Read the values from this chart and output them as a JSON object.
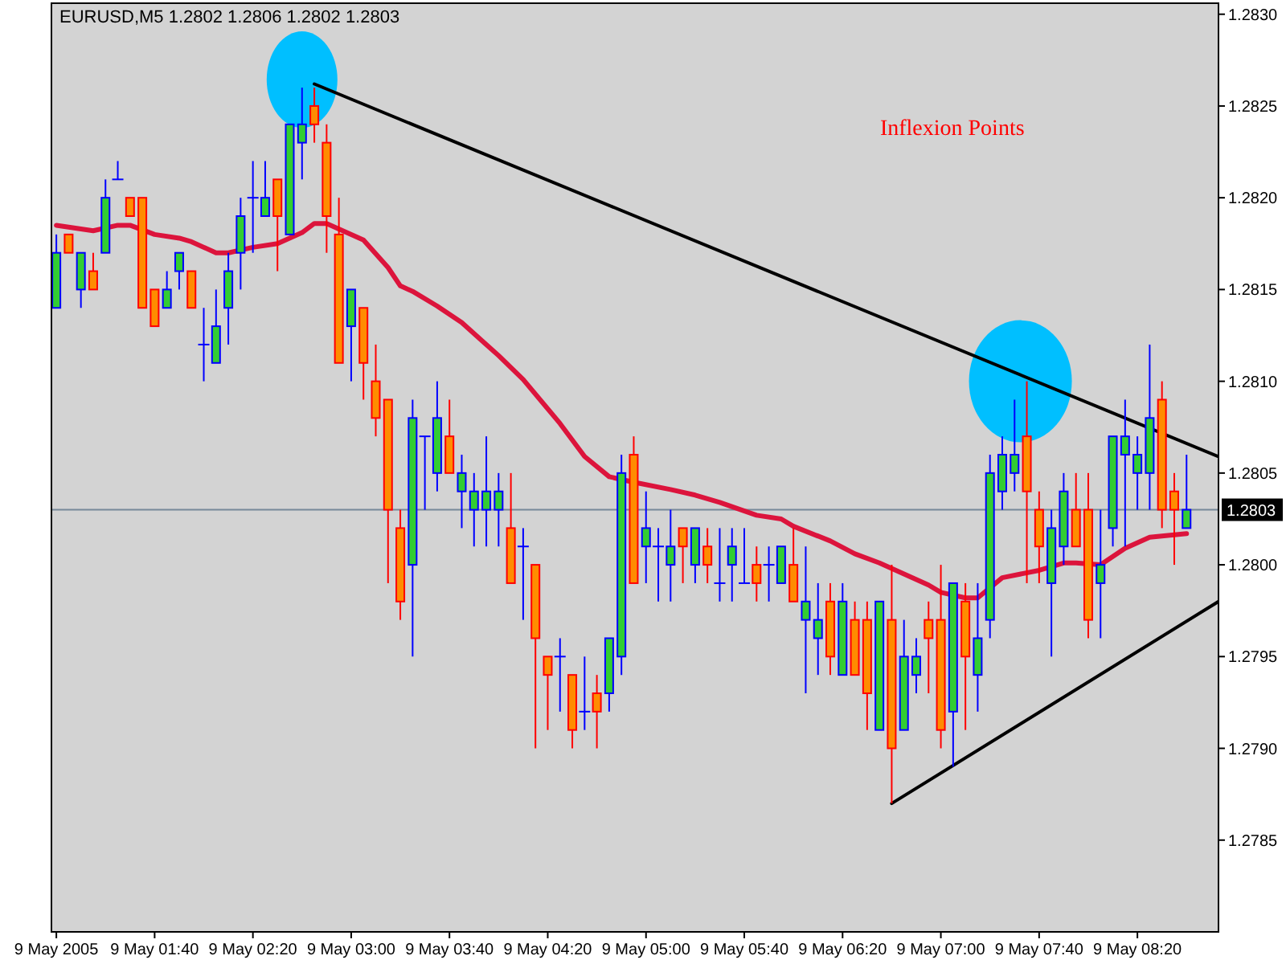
{
  "chart_data": {
    "type": "candlestick",
    "title": "EURUSD,M5  1.2802 1.2806 1.2802 1.2803",
    "annotations": [
      "Inflexion Points"
    ],
    "x": [
      "2005-05-09T01:00",
      "2005-05-09T01:05",
      "2005-05-09T01:10",
      "2005-05-09T01:15",
      "2005-05-09T01:20",
      "2005-05-09T01:25",
      "2005-05-09T01:30",
      "2005-05-09T01:35",
      "2005-05-09T01:40",
      "2005-05-09T01:45",
      "2005-05-09T01:50",
      "2005-05-09T01:55",
      "2005-05-09T02:00",
      "2005-05-09T02:05",
      "2005-05-09T02:10",
      "2005-05-09T02:15",
      "2005-05-09T02:20",
      "2005-05-09T02:25",
      "2005-05-09T02:30",
      "2005-05-09T02:35",
      "2005-05-09T02:40",
      "2005-05-09T02:45",
      "2005-05-09T02:50",
      "2005-05-09T02:55",
      "2005-05-09T03:00",
      "2005-05-09T03:05",
      "2005-05-09T03:10",
      "2005-05-09T03:15",
      "2005-05-09T03:20",
      "2005-05-09T03:25",
      "2005-05-09T03:30",
      "2005-05-09T03:35",
      "2005-05-09T03:40",
      "2005-05-09T03:45",
      "2005-05-09T03:50",
      "2005-05-09T03:55",
      "2005-05-09T04:00",
      "2005-05-09T04:05",
      "2005-05-09T04:10",
      "2005-05-09T04:15",
      "2005-05-09T04:20",
      "2005-05-09T04:25",
      "2005-05-09T04:30",
      "2005-05-09T04:35",
      "2005-05-09T04:40",
      "2005-05-09T04:45",
      "2005-05-09T04:50",
      "2005-05-09T04:55",
      "2005-05-09T05:00",
      "2005-05-09T05:05",
      "2005-05-09T05:10",
      "2005-05-09T05:15",
      "2005-05-09T05:20",
      "2005-05-09T05:25",
      "2005-05-09T05:30",
      "2005-05-09T05:35",
      "2005-05-09T05:40",
      "2005-05-09T05:45",
      "2005-05-09T05:50",
      "2005-05-09T05:55",
      "2005-05-09T06:00",
      "2005-05-09T06:05",
      "2005-05-09T06:10",
      "2005-05-09T06:15",
      "2005-05-09T06:20",
      "2005-05-09T06:25",
      "2005-05-09T06:30",
      "2005-05-09T06:35",
      "2005-05-09T06:40",
      "2005-05-09T06:45",
      "2005-05-09T06:50",
      "2005-05-09T06:55",
      "2005-05-09T07:00",
      "2005-05-09T07:05",
      "2005-05-09T07:10",
      "2005-05-09T07:15",
      "2005-05-09T07:20",
      "2005-05-09T07:25",
      "2005-05-09T07:30",
      "2005-05-09T07:35",
      "2005-05-09T07:40",
      "2005-05-09T07:45",
      "2005-05-09T07:50",
      "2005-05-09T07:55",
      "2005-05-09T08:00",
      "2005-05-09T08:05",
      "2005-05-09T08:10",
      "2005-05-09T08:15",
      "2005-05-09T08:20",
      "2005-05-09T08:25",
      "2005-05-09T08:30",
      "2005-05-09T08:35",
      "2005-05-09T08:40"
    ],
    "ohlc": [
      [
        1.2814,
        1.2818,
        1.2814,
        1.2817
      ],
      [
        1.2818,
        1.2818,
        1.2817,
        1.2817
      ],
      [
        1.2815,
        1.2817,
        1.2814,
        1.2817
      ],
      [
        1.2816,
        1.2817,
        1.2815,
        1.2815
      ],
      [
        1.2817,
        1.2821,
        1.2817,
        1.282
      ],
      [
        1.2821,
        1.2822,
        1.2821,
        1.2821
      ],
      [
        1.282,
        1.282,
        1.2819,
        1.2819
      ],
      [
        1.282,
        1.282,
        1.2814,
        1.2814
      ],
      [
        1.2815,
        1.2815,
        1.2813,
        1.2813
      ],
      [
        1.2814,
        1.2816,
        1.2814,
        1.2815
      ],
      [
        1.2816,
        1.2817,
        1.2815,
        1.2817
      ],
      [
        1.2816,
        1.2816,
        1.2814,
        1.2814
      ],
      [
        1.2812,
        1.2814,
        1.281,
        1.2812
      ],
      [
        1.2811,
        1.2815,
        1.2811,
        1.2813
      ],
      [
        1.2814,
        1.2817,
        1.2812,
        1.2816
      ],
      [
        1.2817,
        1.282,
        1.2815,
        1.2819
      ],
      [
        1.282,
        1.2822,
        1.2817,
        1.282
      ],
      [
        1.2819,
        1.2822,
        1.2819,
        1.282
      ],
      [
        1.2821,
        1.2821,
        1.2816,
        1.2819
      ],
      [
        1.2818,
        1.2824,
        1.2818,
        1.2824
      ],
      [
        1.2823,
        1.2826,
        1.2821,
        1.2824
      ],
      [
        1.2825,
        1.2826,
        1.2823,
        1.2824
      ],
      [
        1.2823,
        1.2824,
        1.2817,
        1.2819
      ],
      [
        1.2818,
        1.282,
        1.2811,
        1.2811
      ],
      [
        1.2813,
        1.2815,
        1.281,
        1.2815
      ],
      [
        1.2814,
        1.2814,
        1.2809,
        1.2811
      ],
      [
        1.281,
        1.2812,
        1.2807,
        1.2808
      ],
      [
        1.2809,
        1.2809,
        1.2799,
        1.2803
      ],
      [
        1.2802,
        1.2803,
        1.2797,
        1.2798
      ],
      [
        1.28,
        1.2809,
        1.2795,
        1.2808
      ],
      [
        1.2807,
        1.2807,
        1.2803,
        1.2807
      ],
      [
        1.2805,
        1.281,
        1.2804,
        1.2808
      ],
      [
        1.2807,
        1.2809,
        1.2805,
        1.2805
      ],
      [
        1.2804,
        1.2806,
        1.2802,
        1.2805
      ],
      [
        1.2803,
        1.2805,
        1.2801,
        1.2804
      ],
      [
        1.2803,
        1.2807,
        1.2801,
        1.2804
      ],
      [
        1.2803,
        1.2805,
        1.2801,
        1.2804
      ],
      [
        1.2802,
        1.2805,
        1.2799,
        1.2799
      ],
      [
        1.2801,
        1.2802,
        1.2797,
        1.2801
      ],
      [
        1.28,
        1.28,
        1.279,
        1.2796
      ],
      [
        1.2795,
        1.2795,
        1.2791,
        1.2794
      ],
      [
        1.2795,
        1.2796,
        1.2792,
        1.2795
      ],
      [
        1.2794,
        1.2794,
        1.279,
        1.2791
      ],
      [
        1.2792,
        1.2795,
        1.2791,
        1.2792
      ],
      [
        1.2793,
        1.2794,
        1.279,
        1.2792
      ],
      [
        1.2793,
        1.2796,
        1.2792,
        1.2796
      ],
      [
        1.2795,
        1.2806,
        1.2794,
        1.2805
      ],
      [
        1.2806,
        1.2807,
        1.2799,
        1.2799
      ],
      [
        1.2801,
        1.2804,
        1.2799,
        1.2802
      ],
      [
        1.2801,
        1.2802,
        1.2798,
        1.2801
      ],
      [
        1.28,
        1.2803,
        1.2798,
        1.2801
      ],
      [
        1.2802,
        1.2802,
        1.2799,
        1.2801
      ],
      [
        1.28,
        1.2802,
        1.2799,
        1.2802
      ],
      [
        1.2801,
        1.2802,
        1.2799,
        1.28
      ],
      [
        1.2799,
        1.2802,
        1.2798,
        1.2799
      ],
      [
        1.28,
        1.2802,
        1.2798,
        1.2801
      ],
      [
        1.2799,
        1.2802,
        1.2799,
        1.2799
      ],
      [
        1.28,
        1.2801,
        1.2798,
        1.2799
      ],
      [
        1.28,
        1.2801,
        1.2798,
        1.28
      ],
      [
        1.2799,
        1.2801,
        1.2799,
        1.2801
      ],
      [
        1.28,
        1.2802,
        1.2798,
        1.2798
      ],
      [
        1.2797,
        1.2801,
        1.2793,
        1.2798
      ],
      [
        1.2796,
        1.2799,
        1.2794,
        1.2797
      ],
      [
        1.2798,
        1.2799,
        1.2794,
        1.2795
      ],
      [
        1.2794,
        1.2799,
        1.2794,
        1.2798
      ],
      [
        1.2797,
        1.2798,
        1.2794,
        1.2794
      ],
      [
        1.2797,
        1.2798,
        1.2791,
        1.2793
      ],
      [
        1.2791,
        1.2798,
        1.2791,
        1.2798
      ],
      [
        1.2797,
        1.28,
        1.2787,
        1.279
      ],
      [
        1.2791,
        1.2797,
        1.2791,
        1.2795
      ],
      [
        1.2794,
        1.2796,
        1.2793,
        1.2795
      ],
      [
        1.2797,
        1.2798,
        1.2793,
        1.2796
      ],
      [
        1.2797,
        1.28,
        1.279,
        1.2791
      ],
      [
        1.2792,
        1.2799,
        1.2789,
        1.2799
      ],
      [
        1.2798,
        1.2799,
        1.2791,
        1.2795
      ],
      [
        1.2794,
        1.2799,
        1.2792,
        1.2796
      ],
      [
        1.2797,
        1.2806,
        1.2796,
        1.2805
      ],
      [
        1.2804,
        1.2807,
        1.2803,
        1.2806
      ],
      [
        1.2805,
        1.2809,
        1.2804,
        1.2806
      ],
      [
        1.2807,
        1.281,
        1.2799,
        1.2804
      ],
      [
        1.2803,
        1.2804,
        1.2799,
        1.2801
      ],
      [
        1.2799,
        1.2803,
        1.2795,
        1.2802
      ],
      [
        1.2801,
        1.2805,
        1.28,
        1.2804
      ],
      [
        1.2803,
        1.2805,
        1.2801,
        1.2801
      ],
      [
        1.2803,
        1.2805,
        1.2796,
        1.2797
      ],
      [
        1.2799,
        1.2803,
        1.2796,
        1.28
      ],
      [
        1.2802,
        1.2807,
        1.2801,
        1.2807
      ],
      [
        1.2806,
        1.2809,
        1.2801,
        1.2807
      ],
      [
        1.2805,
        1.2807,
        1.2803,
        1.2806
      ],
      [
        1.2805,
        1.2812,
        1.2803,
        1.2808
      ],
      [
        1.2809,
        1.281,
        1.2802,
        1.2803
      ],
      [
        1.2804,
        1.2805,
        1.28,
        1.2803
      ],
      [
        1.2802,
        1.2806,
        1.2802,
        1.2803
      ]
    ],
    "series": [
      {
        "type": "line",
        "color": "#dc143c",
        "x": [
          "2005-05-09T01:00",
          "2005-05-09T01:10",
          "2005-05-09T01:15",
          "2005-05-09T01:25",
          "2005-05-09T01:30",
          "2005-05-09T01:40",
          "2005-05-09T01:50",
          "2005-05-09T01:55",
          "2005-05-09T02:05",
          "2005-05-09T02:10",
          "2005-05-09T02:20",
          "2005-05-09T02:30",
          "2005-05-09T02:40",
          "2005-05-09T02:45",
          "2005-05-09T02:50",
          "2005-05-09T03:05",
          "2005-05-09T03:15",
          "2005-05-09T03:20",
          "2005-05-09T03:25",
          "2005-05-09T03:35",
          "2005-05-09T03:45",
          "2005-05-09T03:55",
          "2005-05-09T04:00",
          "2005-05-09T04:10",
          "2005-05-09T04:25",
          "2005-05-09T04:35",
          "2005-05-09T04:45",
          "2005-05-09T04:55",
          "2005-05-09T05:10",
          "2005-05-09T05:20",
          "2005-05-09T05:30",
          "2005-05-09T05:45",
          "2005-05-09T05:55",
          "2005-05-09T06:00",
          "2005-05-09T06:15",
          "2005-05-09T06:25",
          "2005-05-09T06:35",
          "2005-05-09T06:45",
          "2005-05-09T06:55",
          "2005-05-09T07:00",
          "2005-05-09T07:10",
          "2005-05-09T07:15",
          "2005-05-09T07:25",
          "2005-05-09T07:40",
          "2005-05-09T07:50",
          "2005-05-09T07:55",
          "2005-05-09T08:05",
          "2005-05-09T08:15",
          "2005-05-09T08:25",
          "2005-05-09T08:40"
        ],
        "values": [
          1.28185,
          1.28183,
          1.28182,
          1.28185,
          1.28185,
          1.2818,
          1.28178,
          1.28176,
          1.2817,
          1.2817,
          1.28173,
          1.28175,
          1.28181,
          1.28186,
          1.28186,
          1.28177,
          1.28162,
          1.28152,
          1.28149,
          1.28141,
          1.28132,
          1.2812,
          1.28114,
          1.28101,
          1.28077,
          1.28059,
          1.28048,
          1.28045,
          1.28041,
          1.28038,
          1.28034,
          1.28027,
          1.28025,
          1.28021,
          1.28013,
          1.28006,
          1.28001,
          1.27995,
          1.27989,
          1.27985,
          1.27982,
          1.27982,
          1.27993,
          1.27997,
          1.28001,
          1.28001,
          1.28,
          1.28009,
          1.28015,
          1.28017
        ]
      },
      {
        "type": "line",
        "color": "#000000",
        "x": [
          "2005-05-09T02:45",
          "2005-05-09T08:53"
        ],
        "values": [
          1.28262,
          1.28059
        ]
      },
      {
        "type": "line",
        "color": "#000000",
        "x": [
          "2005-05-09T06:40",
          "2005-05-09T08:53"
        ],
        "values": [
          1.2787,
          1.2798
        ]
      }
    ],
    "ref_lines": [
      {
        "axis": "y",
        "value": 1.2803,
        "label": "1.2803",
        "color": "#778899"
      }
    ],
    "xlim": [
      "2005-05-09T00:58",
      "2005-05-09T08:53"
    ],
    "xticks": [
      {
        "value": "2005-05-09T01:00",
        "label": "9 May 2005"
      },
      {
        "value": "2005-05-09T01:40",
        "label": "9 May 01:40"
      },
      {
        "value": "2005-05-09T02:20",
        "label": "9 May 02:20"
      },
      {
        "value": "2005-05-09T03:00",
        "label": "9 May 03:00"
      },
      {
        "value": "2005-05-09T03:40",
        "label": "9 May 03:40"
      },
      {
        "value": "2005-05-09T04:20",
        "label": "9 May 04:20"
      },
      {
        "value": "2005-05-09T05:00",
        "label": "9 May 05:00"
      },
      {
        "value": "2005-05-09T05:40",
        "label": "9 May 05:40"
      },
      {
        "value": "2005-05-09T06:20",
        "label": "9 May 06:20"
      },
      {
        "value": "2005-05-09T07:00",
        "label": "9 May 07:00"
      },
      {
        "value": "2005-05-09T07:40",
        "label": "9 May 07:40"
      },
      {
        "value": "2005-05-09T08:20",
        "label": "9 May 08:20"
      }
    ],
    "ylim": [
      1.278,
      1.28306
    ],
    "yticks": [
      {
        "value": 1.2785,
        "label": "1.2785"
      },
      {
        "value": 1.279,
        "label": "1.2790"
      },
      {
        "value": 1.2795,
        "label": "1.2795"
      },
      {
        "value": 1.28,
        "label": "1.2800"
      },
      {
        "value": 1.2805,
        "label": "1.2805"
      },
      {
        "value": 1.281,
        "label": "1.2810"
      },
      {
        "value": 1.2815,
        "label": "1.2815"
      },
      {
        "value": 1.282,
        "label": "1.2820"
      },
      {
        "value": 1.2825,
        "label": "1.2825"
      },
      {
        "value": 1.283,
        "label": "1.2830"
      }
    ]
  }
}
